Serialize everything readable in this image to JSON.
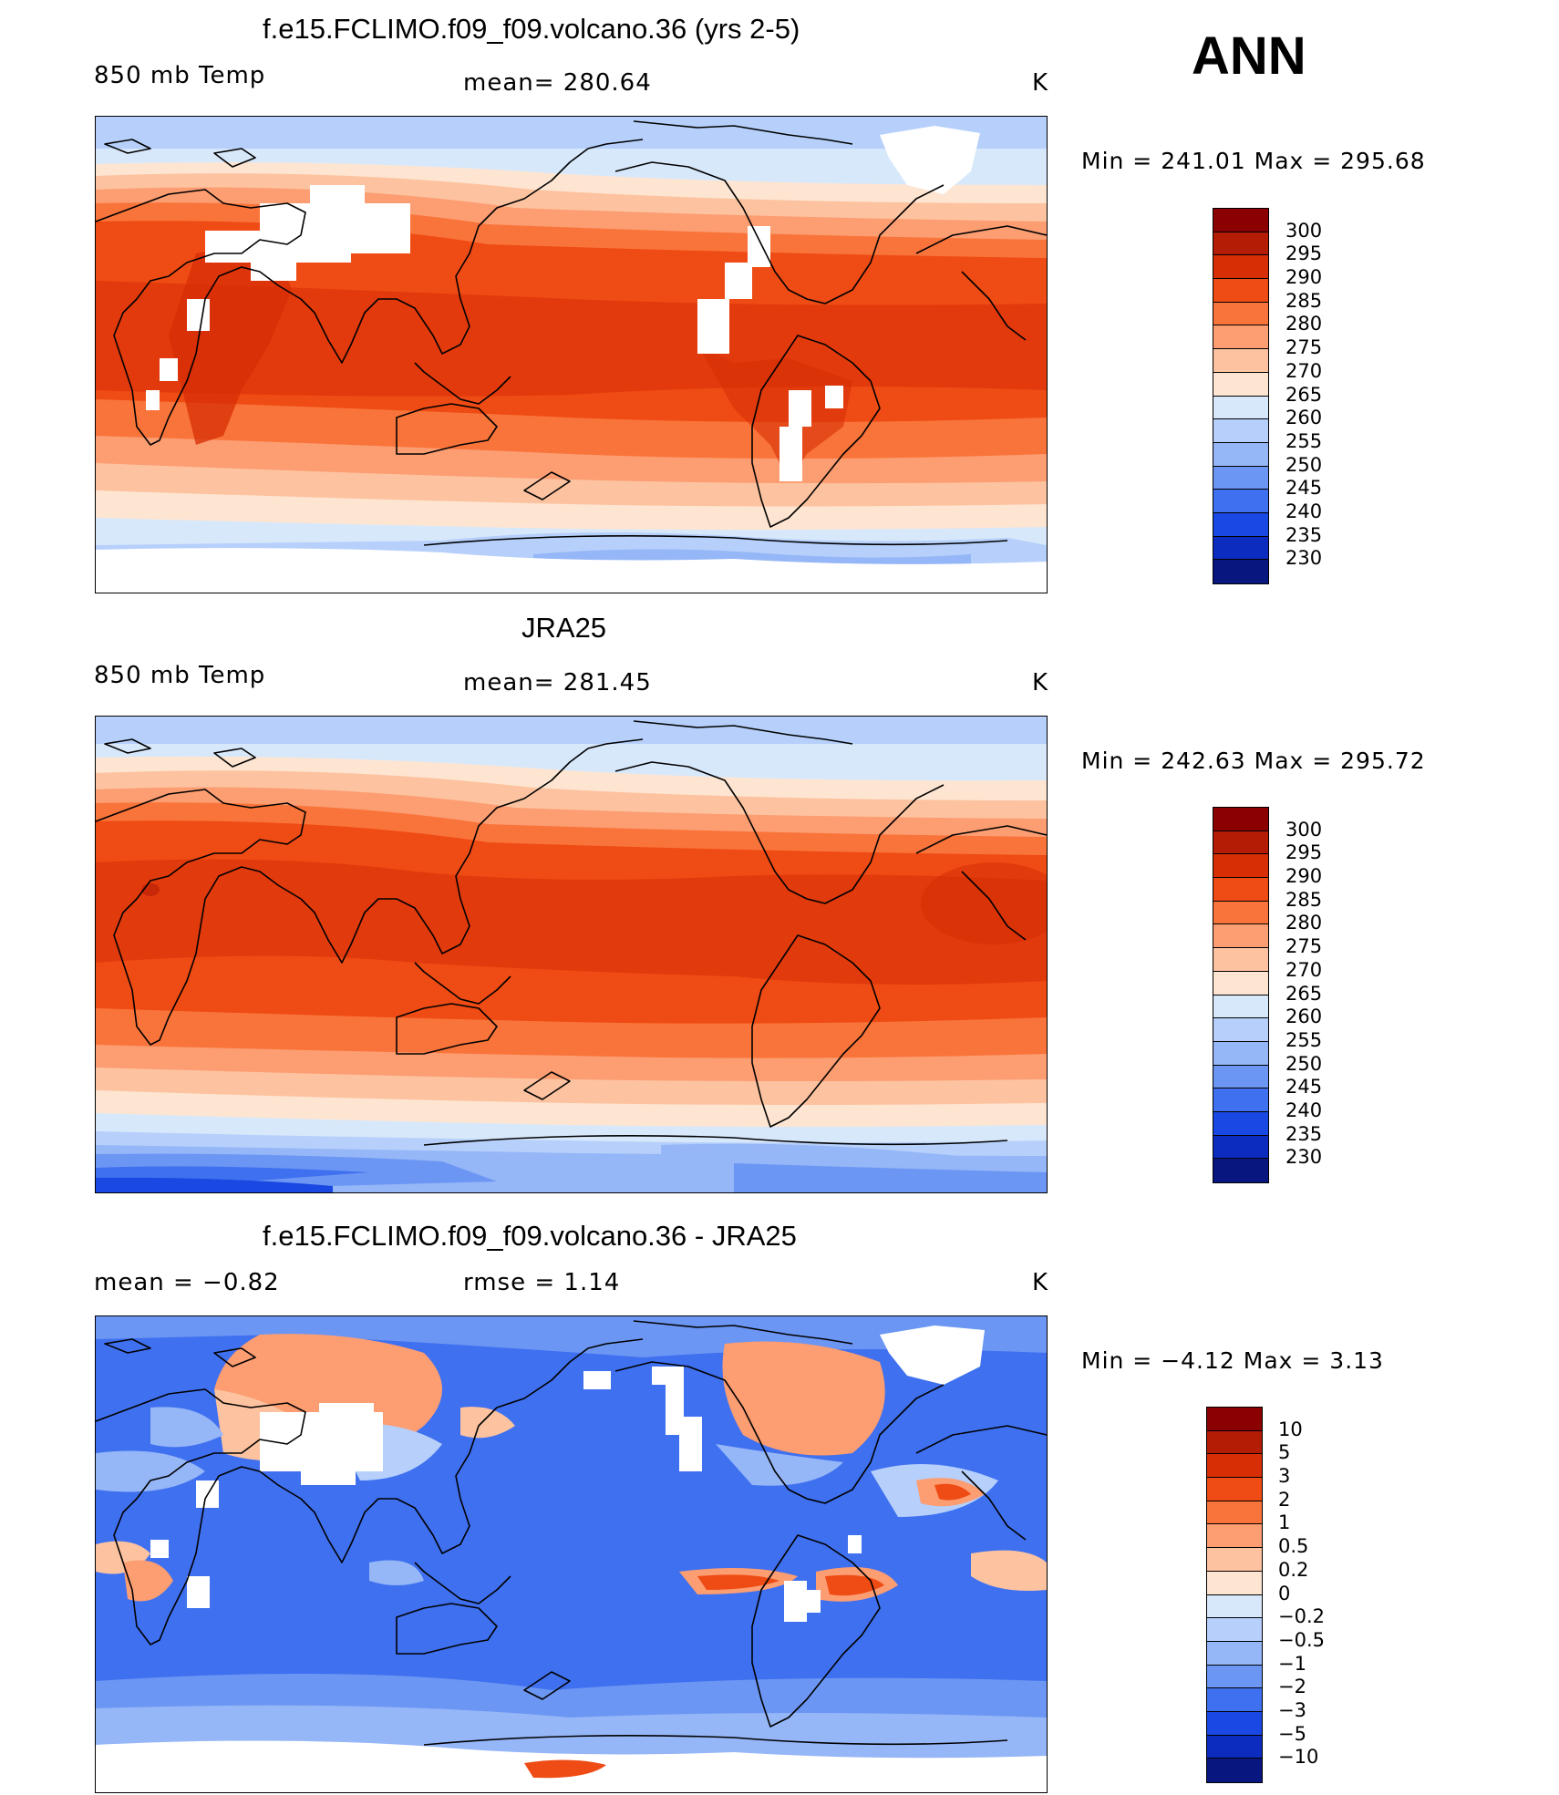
{
  "season": "ANN",
  "panels": [
    {
      "title": "f.e15.FCLIMO.f09_f09.volcano.36 (yrs 2-5)",
      "left_label": "850 mb Temp",
      "center_label": "mean= 280.64",
      "units": "K",
      "range_label": "Min = 241.01 Max = 295.68",
      "kind": "model"
    },
    {
      "title": "JRA25",
      "left_label": "850 mb Temp",
      "center_label": "mean= 281.45",
      "units": "K",
      "range_label": "Min = 242.63 Max = 295.72",
      "kind": "obs"
    },
    {
      "title": "f.e15.FCLIMO.f09_f09.volcano.36 - JRA25",
      "left_label": "mean =   −0.82",
      "center_label": "rmse =    1.14",
      "units": "K",
      "range_label": "Min =   −4.12 Max =    3.13",
      "kind": "diff"
    }
  ],
  "colorbars": {
    "abs": {
      "labels": [
        "300",
        "295",
        "290",
        "285",
        "280",
        "275",
        "270",
        "265",
        "260",
        "255",
        "250",
        "245",
        "240",
        "235",
        "230"
      ],
      "colors": [
        "#8b0000",
        "#b51c06",
        "#d72e06",
        "#ef4b14",
        "#f9743a",
        "#fc9d72",
        "#fdc3a0",
        "#fde5d2",
        "#d8e8fb",
        "#b6d0fb",
        "#95b6f7",
        "#6c96f3",
        "#3f70ef",
        "#1a48e2",
        "#0c2cc0",
        "#081680"
      ]
    },
    "diff": {
      "labels": [
        "10",
        "5",
        "3",
        "2",
        "1",
        "0.5",
        "0.2",
        "0",
        "−0.2",
        "−0.5",
        "−1",
        "−2",
        "−3",
        "−5",
        "−10"
      ],
      "colors": [
        "#8b0000",
        "#b51c06",
        "#d72e06",
        "#ef4b14",
        "#f9743a",
        "#fc9d72",
        "#fdc3a0",
        "#fde5d2",
        "#d8e8fb",
        "#b6d0fb",
        "#95b6f7",
        "#6c96f3",
        "#3f70ef",
        "#1a48e2",
        "#0c2cc0",
        "#081680"
      ]
    }
  },
  "colors": {
    "missing": "#ffffff",
    "coast": "#000000"
  }
}
